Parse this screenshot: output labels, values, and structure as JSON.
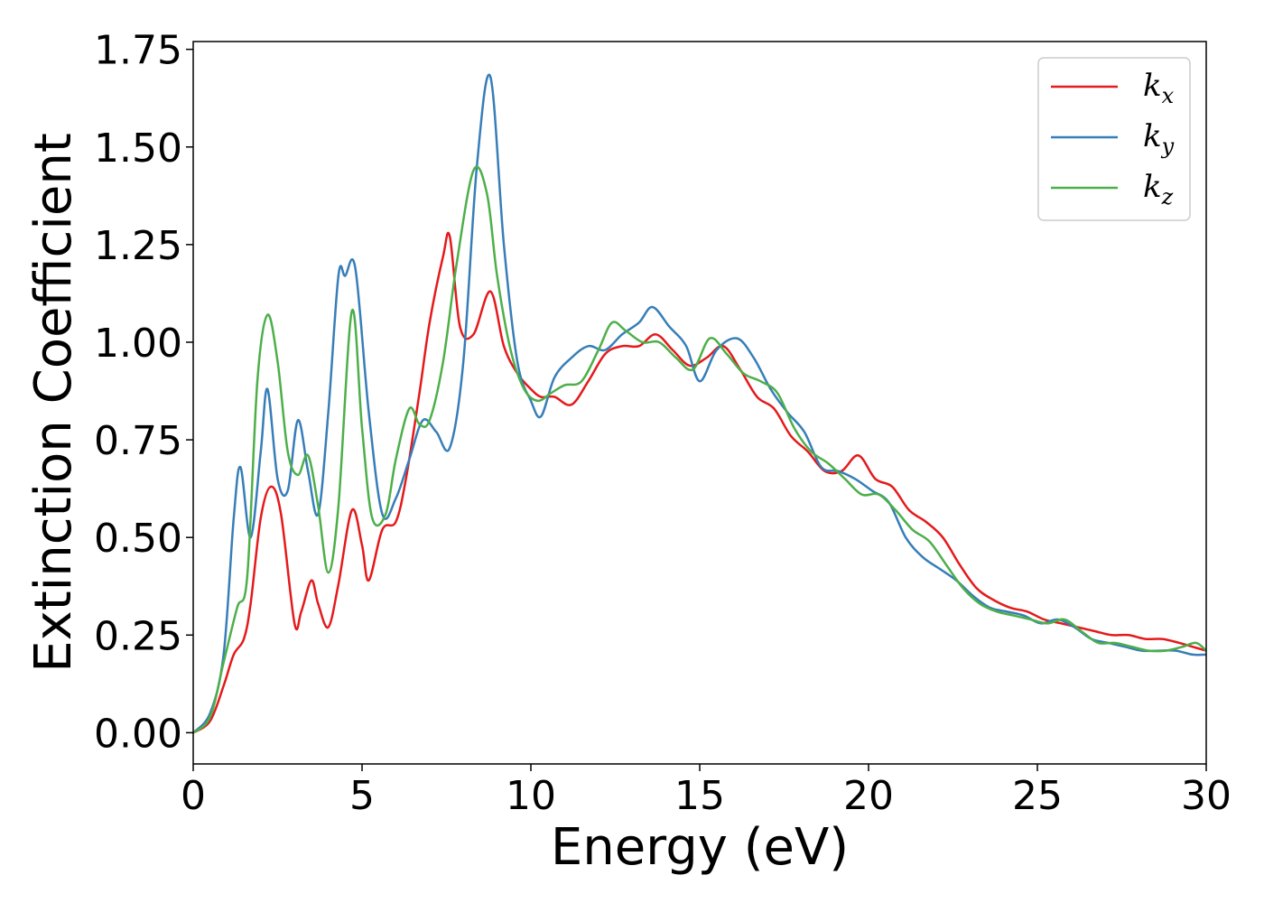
{
  "chart_data": {
    "type": "line",
    "xlabel": "Energy (eV)",
    "ylabel": "Extinction Coefficient",
    "xlim": [
      0,
      30
    ],
    "ylim": [
      -0.08,
      1.77
    ],
    "xticks": [
      0,
      5,
      10,
      15,
      20,
      25,
      30
    ],
    "xtick_labels": [
      "0",
      "5",
      "10",
      "15",
      "20",
      "25",
      "30"
    ],
    "yticks": [
      0.0,
      0.25,
      0.5,
      0.75,
      1.0,
      1.25,
      1.5,
      1.75
    ],
    "ytick_labels": [
      "0.00",
      "0.25",
      "0.50",
      "0.75",
      "1.00",
      "1.25",
      "1.50",
      "1.75"
    ],
    "grid": false,
    "legend_position": "top-right",
    "series": [
      {
        "name": "k",
        "subscript": "x",
        "color": "#e41a1c",
        "x": [
          0,
          0.5,
          0.9,
          1.2,
          1.5,
          1.7,
          2.0,
          2.3,
          2.6,
          3.0,
          3.2,
          3.5,
          3.7,
          4.0,
          4.3,
          4.7,
          5.0,
          5.2,
          5.6,
          6.0,
          6.3,
          6.7,
          7.0,
          7.4,
          7.6,
          7.9,
          8.3,
          8.8,
          9.2,
          9.6,
          10.0,
          10.3,
          10.7,
          11.2,
          11.7,
          12.2,
          12.7,
          13.2,
          13.7,
          14.2,
          14.7,
          15.2,
          15.7,
          16.2,
          16.7,
          17.2,
          17.7,
          18.2,
          18.7,
          19.2,
          19.7,
          20.2,
          20.7,
          21.2,
          21.7,
          22.2,
          22.7,
          23.2,
          23.7,
          24.2,
          24.7,
          25.2,
          25.7,
          26.2,
          26.7,
          27.2,
          27.7,
          28.2,
          28.7,
          29.2,
          29.6,
          30
        ],
        "values": [
          0.0,
          0.03,
          0.12,
          0.2,
          0.24,
          0.33,
          0.55,
          0.63,
          0.56,
          0.28,
          0.31,
          0.39,
          0.33,
          0.27,
          0.38,
          0.57,
          0.48,
          0.39,
          0.52,
          0.54,
          0.65,
          0.87,
          1.05,
          1.22,
          1.27,
          1.04,
          1.02,
          1.13,
          0.99,
          0.92,
          0.88,
          0.86,
          0.86,
          0.84,
          0.9,
          0.97,
          0.99,
          0.99,
          1.02,
          0.98,
          0.94,
          0.96,
          0.99,
          0.93,
          0.86,
          0.83,
          0.76,
          0.72,
          0.67,
          0.67,
          0.71,
          0.65,
          0.63,
          0.57,
          0.54,
          0.5,
          0.43,
          0.37,
          0.34,
          0.32,
          0.31,
          0.29,
          0.28,
          0.27,
          0.26,
          0.25,
          0.25,
          0.24,
          0.24,
          0.23,
          0.22,
          0.21
        ]
      },
      {
        "name": "k",
        "subscript": "y",
        "color": "#377eb8",
        "x": [
          0,
          0.5,
          0.9,
          1.2,
          1.4,
          1.7,
          2.0,
          2.2,
          2.5,
          2.8,
          3.1,
          3.4,
          3.7,
          4.0,
          4.3,
          4.5,
          4.8,
          5.2,
          5.6,
          6.0,
          6.4,
          6.8,
          7.2,
          7.6,
          8.0,
          8.4,
          8.8,
          9.2,
          9.6,
          10.0,
          10.3,
          10.7,
          11.2,
          11.7,
          12.2,
          12.7,
          13.2,
          13.6,
          14.1,
          14.6,
          15.0,
          15.5,
          16.1,
          16.6,
          17.1,
          17.6,
          18.1,
          18.6,
          19.1,
          19.6,
          20.1,
          20.6,
          21.1,
          21.6,
          22.1,
          22.6,
          23.1,
          23.6,
          24.1,
          24.6,
          25.1,
          25.6,
          26.1,
          26.6,
          27.1,
          27.6,
          28.1,
          28.6,
          29.1,
          29.6,
          30
        ],
        "values": [
          0.0,
          0.05,
          0.2,
          0.55,
          0.68,
          0.5,
          0.72,
          0.88,
          0.65,
          0.62,
          0.8,
          0.67,
          0.56,
          0.82,
          1.17,
          1.17,
          1.19,
          0.82,
          0.56,
          0.6,
          0.7,
          0.8,
          0.77,
          0.73,
          0.95,
          1.45,
          1.68,
          1.25,
          0.95,
          0.85,
          0.81,
          0.91,
          0.96,
          0.99,
          0.98,
          1.02,
          1.05,
          1.09,
          1.04,
          0.99,
          0.9,
          0.98,
          1.01,
          0.96,
          0.88,
          0.82,
          0.77,
          0.68,
          0.67,
          0.65,
          0.62,
          0.59,
          0.5,
          0.45,
          0.42,
          0.39,
          0.35,
          0.32,
          0.31,
          0.3,
          0.28,
          0.29,
          0.27,
          0.24,
          0.23,
          0.22,
          0.21,
          0.21,
          0.21,
          0.2,
          0.2
        ]
      },
      {
        "name": "k",
        "subscript": "z",
        "color": "#4daf4a",
        "x": [
          0,
          0.5,
          0.9,
          1.3,
          1.6,
          1.9,
          2.2,
          2.5,
          2.8,
          3.1,
          3.4,
          3.7,
          4.0,
          4.3,
          4.7,
          5.0,
          5.3,
          5.7,
          6.0,
          6.4,
          6.7,
          7.0,
          7.4,
          7.8,
          8.3,
          8.7,
          9.0,
          9.4,
          9.8,
          10.2,
          10.6,
          11.0,
          11.5,
          12.0,
          12.4,
          12.8,
          13.3,
          13.8,
          14.3,
          14.8,
          15.3,
          15.8,
          16.3,
          16.8,
          17.3,
          17.8,
          18.3,
          18.8,
          19.3,
          19.8,
          20.3,
          20.8,
          21.3,
          21.8,
          22.3,
          22.8,
          23.3,
          23.8,
          24.3,
          24.8,
          25.3,
          25.8,
          26.3,
          26.8,
          27.3,
          27.8,
          28.3,
          28.8,
          29.3,
          29.7,
          30
        ],
        "values": [
          0.0,
          0.04,
          0.18,
          0.32,
          0.4,
          0.9,
          1.07,
          0.95,
          0.72,
          0.66,
          0.71,
          0.58,
          0.41,
          0.58,
          1.08,
          0.78,
          0.55,
          0.56,
          0.7,
          0.83,
          0.79,
          0.8,
          0.95,
          1.2,
          1.44,
          1.38,
          1.17,
          0.98,
          0.88,
          0.85,
          0.87,
          0.89,
          0.9,
          0.98,
          1.05,
          1.03,
          1.0,
          1.0,
          0.96,
          0.93,
          1.01,
          0.97,
          0.92,
          0.9,
          0.87,
          0.78,
          0.72,
          0.69,
          0.65,
          0.61,
          0.61,
          0.57,
          0.52,
          0.49,
          0.43,
          0.37,
          0.33,
          0.31,
          0.3,
          0.29,
          0.28,
          0.29,
          0.26,
          0.23,
          0.23,
          0.22,
          0.21,
          0.21,
          0.22,
          0.23,
          0.21
        ]
      }
    ]
  }
}
